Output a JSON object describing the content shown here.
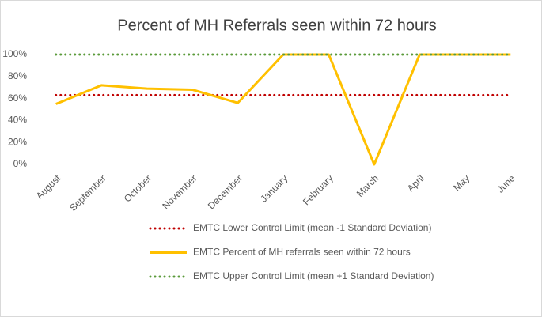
{
  "chart_data": {
    "type": "line",
    "title": "Percent of MH Referrals seen within 72 hours",
    "categories": [
      "August",
      "September",
      "October",
      "November",
      "December",
      "January",
      "February",
      "March",
      "April",
      "May",
      "June"
    ],
    "series": [
      {
        "name": "EMTC Lower Control Limit (mean -1 Standard Deviation)",
        "color": "#c00000",
        "style": "dotted",
        "values": [
          63,
          63,
          63,
          63,
          63,
          63,
          63,
          63,
          63,
          63,
          63
        ]
      },
      {
        "name": "EMTC Percent of MH referrals seen within 72 hours",
        "color": "#ffc000",
        "style": "solid",
        "values": [
          55,
          72,
          69,
          68,
          56,
          100,
          100,
          0,
          100,
          100,
          100
        ]
      },
      {
        "name": "EMTC Upper Control Limit (mean +1 Standard Deviation)",
        "color": "#5a9a3a",
        "style": "dotted",
        "values": [
          100,
          100,
          100,
          100,
          100,
          100,
          100,
          100,
          100,
          100,
          100
        ]
      }
    ],
    "ylim": [
      0,
      100
    ],
    "yticks": [
      {
        "value": 0,
        "label": "0%"
      },
      {
        "value": 20,
        "label": "20%"
      },
      {
        "value": 40,
        "label": "40%"
      },
      {
        "value": 60,
        "label": "60%"
      },
      {
        "value": 80,
        "label": "80%"
      },
      {
        "value": 100,
        "label": "100%"
      }
    ],
    "grid": false,
    "legend": "bottom"
  }
}
